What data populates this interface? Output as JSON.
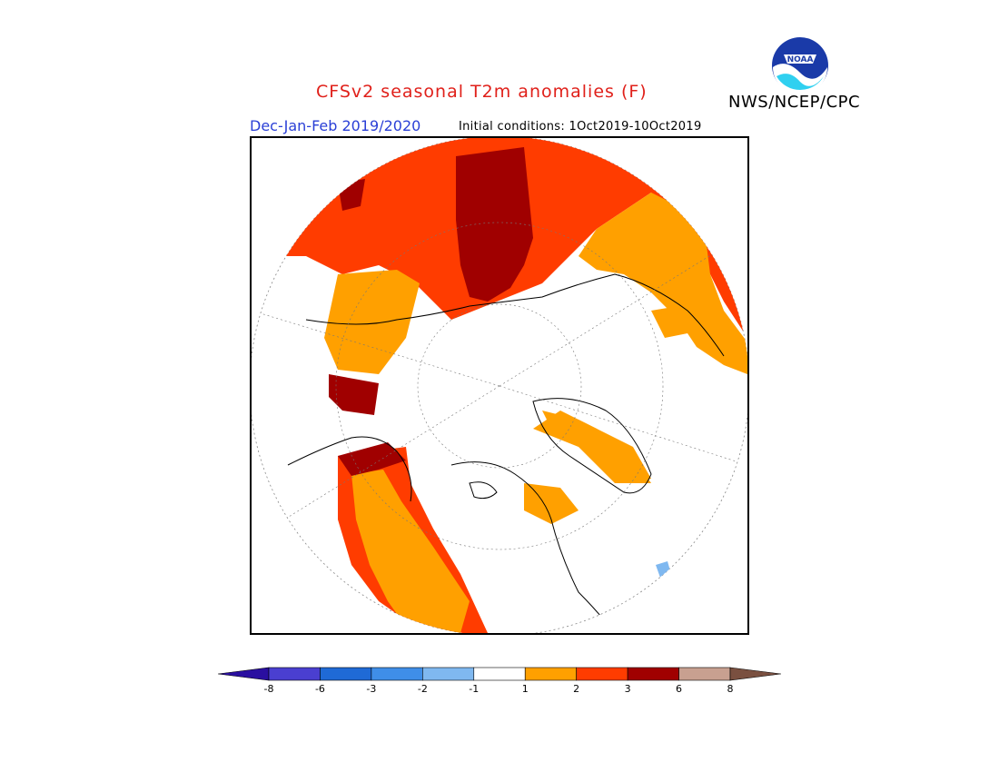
{
  "header": {
    "title": "CFSv2 seasonal T2m anomalies (F)",
    "agency": "NWS/NCEP/CPC",
    "period": "Dec-Jan-Feb 2019/2020",
    "initial_conditions": "Initial conditions: 1Oct2019-10Oct2019",
    "logo_text": "NOAA"
  },
  "map": {
    "projection": "north-polar-stereographic",
    "variable": "T2m anomaly",
    "units": "F"
  },
  "legend": {
    "colors": [
      "#2a0fa0",
      "#4a3fd0",
      "#1f6ad6",
      "#3f8ee8",
      "#7fb8f0",
      "#ffffff",
      "#ffa000",
      "#ff3c00",
      "#a00000",
      "#c8a090",
      "#7a5040"
    ],
    "labels": [
      "-8",
      "-6",
      "-3",
      "-2",
      "-1",
      "1",
      "2",
      "3",
      "6",
      "8"
    ]
  }
}
